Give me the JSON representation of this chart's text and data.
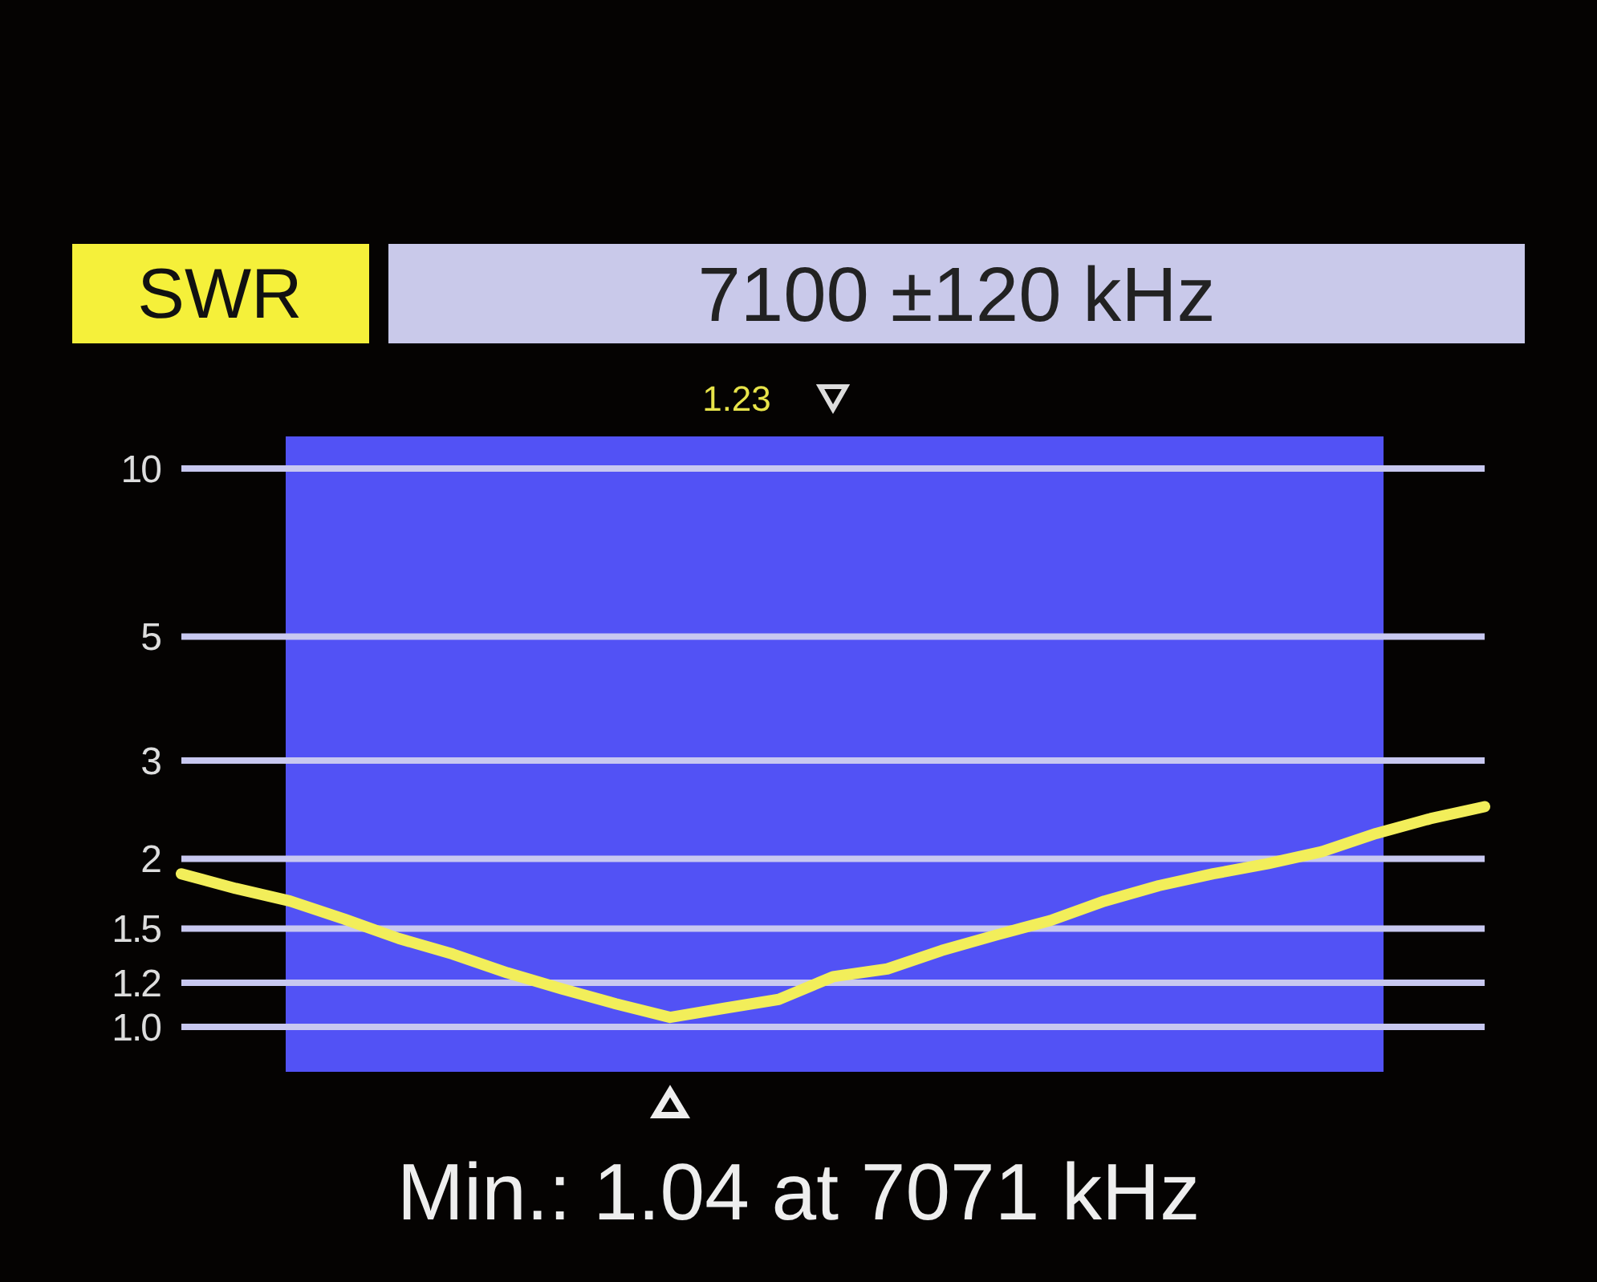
{
  "chart_data": {
    "type": "line",
    "title": "7100 ±120 kHz",
    "ylabel": "SWR",
    "categories": [
      null,
      null,
      null,
      null,
      null,
      null,
      null,
      null,
      null,
      null,
      null,
      null,
      null,
      null,
      null,
      null,
      null,
      null,
      null,
      null,
      null,
      null,
      null,
      null,
      null
    ],
    "series": [
      {
        "color": "#f2ee5a",
        "values": [
          1.88,
          1.77,
          1.68,
          1.56,
          1.44,
          1.35,
          1.25,
          1.17,
          1.1,
          1.04,
          1.08,
          1.12,
          1.23,
          1.27,
          1.37,
          1.46,
          1.55,
          1.68,
          1.79,
          1.88,
          1.96,
          2.06,
          2.22,
          2.36,
          2.48
        ]
      }
    ],
    "ylim": [
      1.0,
      10
    ],
    "yticks": [
      {
        "value": 1.0,
        "label": "1.0"
      },
      1.2,
      1.5,
      2,
      3,
      5,
      10
    ],
    "log": "y",
    "tick_labels": "y",
    "grid": "y",
    "legend": false,
    "marker": "none",
    "line_style": "solid",
    "annotations": [
      "1.23",
      "Min.: 1.04 at 7071 kHz"
    ]
  }
}
